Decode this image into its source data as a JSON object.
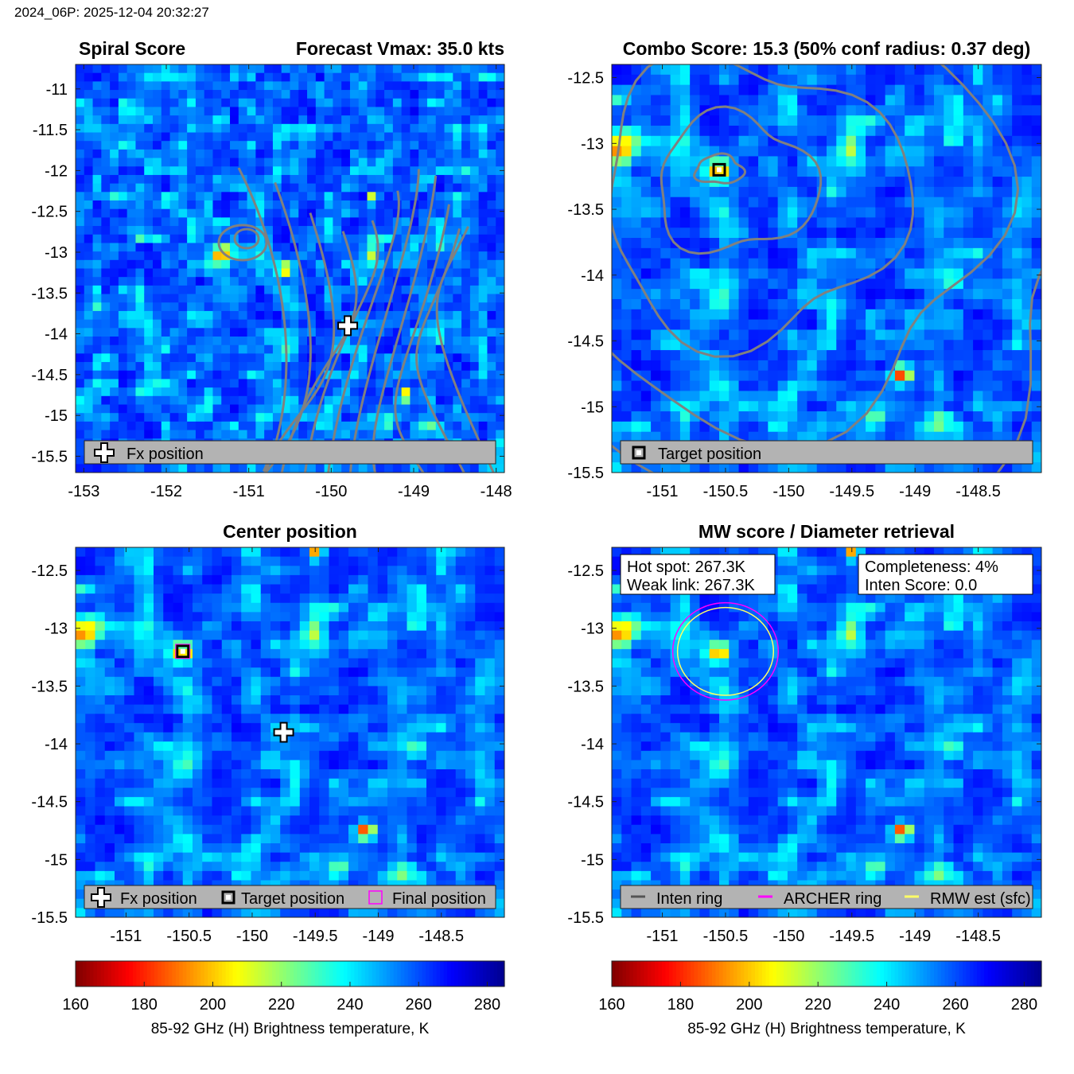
{
  "header": "2024_06P: 2025-12-04 20:32:27",
  "panels": {
    "spiral": {
      "title_left": "Spiral Score",
      "title_right": "Forecast Vmax: 35.0 kts",
      "xticks": [
        "-153",
        "-152",
        "-151",
        "-150",
        "-149",
        "-148"
      ],
      "yticks": [
        "-11",
        "-11.5",
        "-12",
        "-12.5",
        "-13",
        "-13.5",
        "-14",
        "-14.5",
        "-15",
        "-15.5"
      ],
      "legend": [
        "Fx position"
      ]
    },
    "combo": {
      "title": "Combo Score: 15.3  (50% conf radius: 0.37 deg)",
      "xticks": [
        "-151",
        "-150.5",
        "-150",
        "-149.5",
        "-149",
        "-148.5"
      ],
      "yticks": [
        "-12.5",
        "-13",
        "-13.5",
        "-14",
        "-14.5",
        "-15",
        "-15.5"
      ],
      "legend": [
        "Target position"
      ]
    },
    "center": {
      "title": "Center position",
      "xticks": [
        "-151",
        "-150.5",
        "-150",
        "-149.5",
        "-149",
        "-148.5"
      ],
      "yticks": [
        "-12.5",
        "-13",
        "-13.5",
        "-14",
        "-14.5",
        "-15",
        "-15.5"
      ],
      "legend": [
        "Fx position",
        "Target position",
        "Final position"
      ]
    },
    "mw": {
      "title": "MW score / Diameter retrieval",
      "xticks": [
        "-151",
        "-150.5",
        "-150",
        "-149.5",
        "-149",
        "-148.5"
      ],
      "yticks": [
        "-12.5",
        "-13",
        "-13.5",
        "-14",
        "-14.5",
        "-15",
        "-15.5"
      ],
      "legend": [
        "Inten ring",
        "ARCHER ring",
        "RMW est (sfc)"
      ],
      "info_left": [
        "Hot spot: 267.3K",
        "Weak link: 267.3K"
      ],
      "info_right": [
        "Completeness: 4%",
        "Inten Score: 0.0"
      ]
    }
  },
  "colorbar": {
    "ticks": [
      "160",
      "180",
      "200",
      "220",
      "240",
      "260",
      "280"
    ],
    "label": "85-92 GHz (H) Brightness temperature, K"
  },
  "chart_data": [
    {
      "type": "heatmap",
      "title": "Spiral Score",
      "subtitle": "Forecast Vmax: 35.0 kts",
      "xlim": [
        -153.1,
        -147.9
      ],
      "ylim": [
        -15.7,
        -10.7
      ],
      "markers": [
        {
          "label": "Fx position",
          "x": -149.8,
          "y": -13.9
        }
      ]
    },
    {
      "type": "heatmap",
      "title": "Combo Score: 15.3  (50% conf radius: 0.37 deg)",
      "xlim": [
        -151.4,
        -148.0
      ],
      "ylim": [
        -15.5,
        -12.4
      ],
      "markers": [
        {
          "label": "Target position",
          "x": -150.55,
          "y": -13.2
        }
      ]
    },
    {
      "type": "heatmap",
      "title": "Center position",
      "xlim": [
        -151.4,
        -148.0
      ],
      "ylim": [
        -15.5,
        -12.3
      ],
      "markers": [
        {
          "label": "Fx position",
          "x": -149.75,
          "y": -13.9
        },
        {
          "label": "Target position",
          "x": -150.55,
          "y": -13.2
        }
      ]
    },
    {
      "type": "heatmap",
      "title": "MW score / Diameter retrieval",
      "xlim": [
        -151.4,
        -148.0
      ],
      "ylim": [
        -15.5,
        -12.3
      ],
      "rings": [
        {
          "label": "Inten ring / ARCHER ring / RMW est (sfc)",
          "center_x": -150.5,
          "center_y": -13.2,
          "radius_deg": 0.38
        }
      ]
    }
  ],
  "colormap": {
    "range": [
      160,
      285
    ],
    "stops": [
      "#7f0000",
      "#ff0000",
      "#ff8000",
      "#ffff00",
      "#80ff80",
      "#00ffff",
      "#0080ff",
      "#0000ff",
      "#00008f"
    ]
  },
  "colors": {
    "contour": "#808080",
    "archer_ring": "#ff00ff",
    "rmw_ring": "#ffff66",
    "inten_ring": "#555555",
    "legend_bg": "#b3b3b3"
  }
}
